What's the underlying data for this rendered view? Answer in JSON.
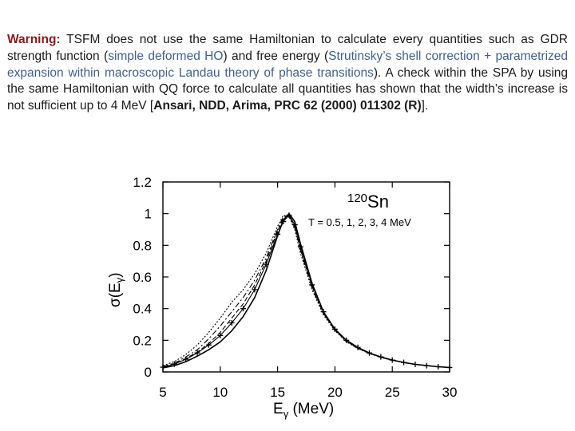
{
  "warning": {
    "label": "Warning:",
    "p1": " TSFM does not use the same Hamiltonian to calculate every quantities such as GDR strength function (",
    "p2": "simple deformed HO",
    "p3": ") and free energy (",
    "p4": "Strutinsky’s shell correction + parametrized expansion within macroscopic Landau theory of phase transitions",
    "p5": "). A check within the SPA by using the same Hamiltonian with QQ force to calculate all quantities has shown that the width’s increase is not sufficient  up to 4 MeV [",
    "ref": "Ansari, NDD, Arima, PRC 62 (2000) 011302 (R)",
    "p6": "].",
    "colors": {
      "text": "#1a1a1a",
      "red": "#8b1a1a",
      "blue": "#3f5f8f"
    }
  },
  "chart_data": {
    "type": "line",
    "nucleus_mass": "120",
    "nucleus_symbol": "Sn",
    "temperature_label": "T = 0.5, 1, 2, 3, 4 MeV",
    "ylabel_main": "σ(E",
    "ylabel_sub": "γ",
    "ylabel_close": ")",
    "xlabel_main": "E",
    "xlabel_sub": "γ",
    "xlabel_unit": " (MeV)",
    "xlim": [
      5,
      30
    ],
    "ylim": [
      0,
      1.2
    ],
    "xticks": [
      "5",
      "10",
      "15",
      "20",
      "25",
      "30"
    ],
    "yticks": [
      "0",
      "0.2",
      "0.4",
      "0.6",
      "0.8",
      "1",
      "1.2"
    ],
    "grid": false,
    "x": [
      5,
      6,
      7,
      8,
      9,
      10,
      11,
      12,
      13,
      14,
      15,
      15.5,
      16,
      16.5,
      17,
      18,
      19,
      20,
      21,
      22,
      23,
      24,
      25,
      26,
      27,
      28,
      29,
      30
    ],
    "series": [
      {
        "style": "crosses",
        "values": [
          0.03,
          0.05,
          0.08,
          0.12,
          0.17,
          0.23,
          0.31,
          0.4,
          0.52,
          0.68,
          0.87,
          0.95,
          0.99,
          0.93,
          0.79,
          0.55,
          0.38,
          0.27,
          0.2,
          0.155,
          0.12,
          0.095,
          0.075,
          0.06,
          0.048,
          0.04,
          0.033,
          0.028
        ]
      },
      {
        "style": "solid",
        "values": [
          0.025,
          0.04,
          0.065,
          0.1,
          0.14,
          0.19,
          0.26,
          0.35,
          0.47,
          0.64,
          0.86,
          0.96,
          1.0,
          0.95,
          0.81,
          0.56,
          0.38,
          0.27,
          0.2,
          0.155,
          0.12,
          0.095,
          0.075,
          0.06,
          0.048,
          0.04,
          0.033,
          0.028
        ]
      },
      {
        "style": "dashed",
        "values": [
          0.03,
          0.05,
          0.085,
          0.125,
          0.18,
          0.25,
          0.34,
          0.43,
          0.55,
          0.7,
          0.89,
          0.97,
          0.99,
          0.92,
          0.78,
          0.54,
          0.37,
          0.265,
          0.195,
          0.15,
          0.118,
          0.093,
          0.074,
          0.06,
          0.048,
          0.04,
          0.033,
          0.028
        ]
      },
      {
        "style": "dashdot",
        "values": [
          0.035,
          0.055,
          0.095,
          0.14,
          0.21,
          0.29,
          0.38,
          0.47,
          0.58,
          0.72,
          0.9,
          0.98,
          0.99,
          0.91,
          0.77,
          0.53,
          0.37,
          0.265,
          0.195,
          0.15,
          0.118,
          0.093,
          0.074,
          0.06,
          0.048,
          0.04,
          0.033,
          0.028
        ]
      },
      {
        "style": "dotted",
        "values": [
          0.04,
          0.065,
          0.11,
          0.17,
          0.25,
          0.34,
          0.44,
          0.52,
          0.62,
          0.75,
          0.92,
          0.99,
          0.98,
          0.9,
          0.75,
          0.52,
          0.36,
          0.26,
          0.19,
          0.148,
          0.116,
          0.092,
          0.073,
          0.059,
          0.048,
          0.04,
          0.033,
          0.028
        ]
      }
    ]
  }
}
